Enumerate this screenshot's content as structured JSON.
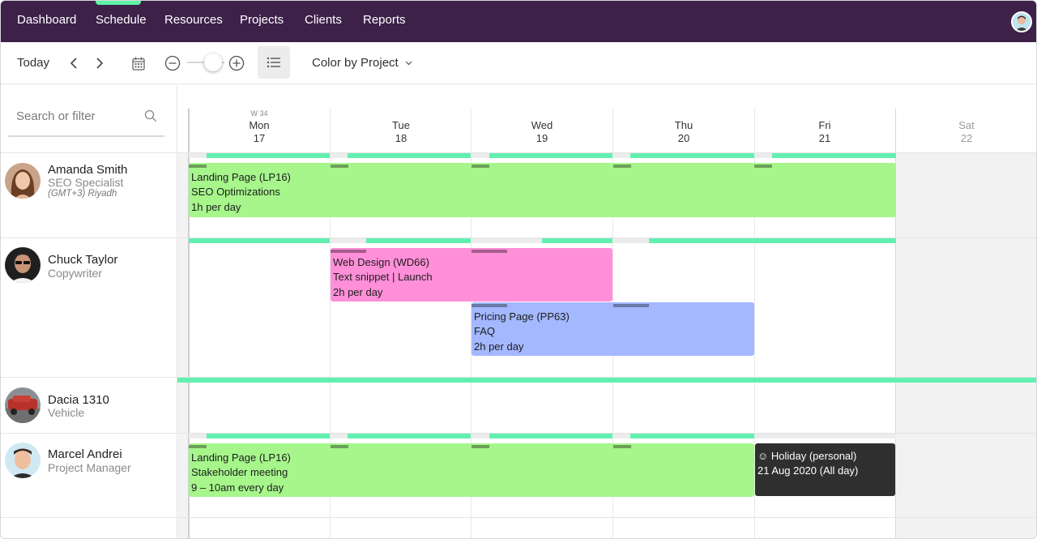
{
  "nav": {
    "items": [
      "Dashboard",
      "Schedule",
      "Resources",
      "Projects",
      "Clients",
      "Reports"
    ],
    "active": "Schedule"
  },
  "toolbar": {
    "today_label": "Today",
    "color_by_label": "Color by Project"
  },
  "search": {
    "placeholder": "Search or filter"
  },
  "calendar": {
    "week_label": "W 34",
    "days": [
      {
        "name": "Mon",
        "num": "17"
      },
      {
        "name": "Tue",
        "num": "18"
      },
      {
        "name": "Wed",
        "num": "19"
      },
      {
        "name": "Thu",
        "num": "20"
      },
      {
        "name": "Fri",
        "num": "21"
      },
      {
        "name": "Sat",
        "num": "22"
      }
    ]
  },
  "people": [
    {
      "name": "Amanda Smith",
      "role": "SEO Specialist",
      "timezone": "(GMT+3) Riyadh"
    },
    {
      "name": "Chuck Taylor",
      "role": "Copywriter"
    },
    {
      "name": "Dacia 1310",
      "role": "Vehicle"
    },
    {
      "name": "Marcel Andrei",
      "role": "Project Manager"
    }
  ],
  "tasks": [
    {
      "lines": [
        "Landing Page (LP16)",
        "SEO Optimizations",
        "1h per day"
      ],
      "color": "#a6f68b"
    },
    {
      "lines": [
        "Web Design (WD66)",
        "Text snippet | Launch",
        "2h per day"
      ],
      "color": "#ff8fd8"
    },
    {
      "lines": [
        "Pricing Page (PP63)",
        "FAQ",
        "2h per day"
      ],
      "color": "#a3b8ff"
    },
    {
      "lines": [
        "Landing Page (LP16)",
        "Stakeholder meeting",
        "9 – 10am every day"
      ],
      "color": "#a6f68b"
    },
    {
      "lines": [
        "☺ Holiday (personal)",
        "21 Aug 2020 (All day)"
      ],
      "color": "#2f2f2f"
    }
  ],
  "colors": {
    "nav_bg": "#3d2149",
    "capacity": "#62f0b0",
    "accent": "#5ef2a8"
  }
}
